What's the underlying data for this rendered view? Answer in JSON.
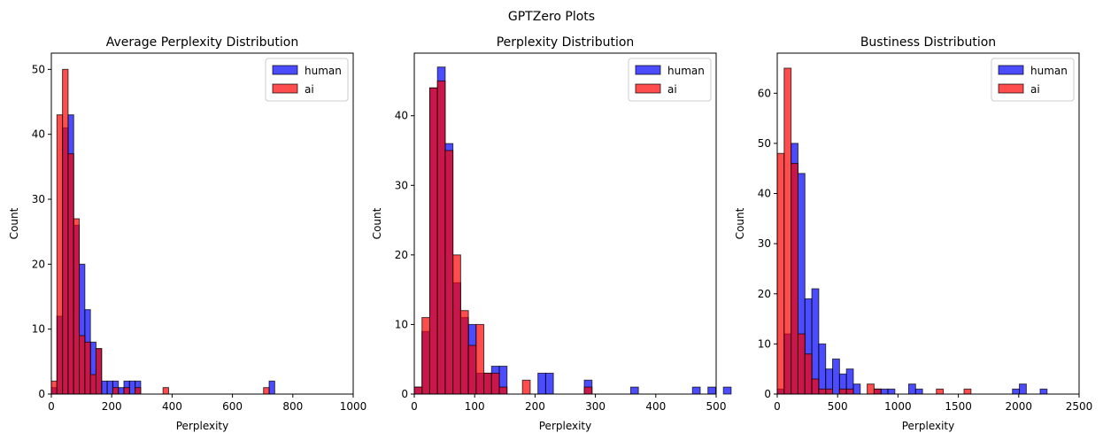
{
  "suptitle": "GPTZero Plots",
  "colors": {
    "human": "#0000ff",
    "ai": "#ff0000",
    "edge": "#000000"
  },
  "chart_data": [
    {
      "type": "bar",
      "title": "Average Perplexity Distribution",
      "xlabel": "Perplexity",
      "ylabel": "Count",
      "xlim": [
        0,
        1000
      ],
      "ylim": [
        0,
        52.5
      ],
      "xticks": [
        0,
        200,
        400,
        600,
        800,
        1000
      ],
      "yticks": [
        0,
        10,
        20,
        30,
        40,
        50
      ],
      "legend": {
        "position": "top-right",
        "entries": [
          "human",
          "ai"
        ]
      },
      "grid": false,
      "bin_width": 18.5,
      "bin_start": 0,
      "series": [
        {
          "name": "human",
          "values": [
            1,
            12,
            41,
            43,
            26,
            20,
            13,
            8,
            7,
            2,
            2,
            2,
            1,
            2,
            2,
            2,
            0,
            0,
            0,
            0,
            0,
            0,
            0,
            0,
            0,
            0,
            0,
            0,
            0,
            0,
            0,
            0,
            0,
            0,
            0,
            0,
            0,
            0,
            0,
            2
          ]
        },
        {
          "name": "ai",
          "values": [
            2,
            43,
            50,
            37,
            27,
            9,
            8,
            3,
            7,
            0,
            0,
            1,
            0,
            1,
            0,
            1,
            0,
            0,
            0,
            0,
            1,
            0,
            0,
            0,
            0,
            0,
            0,
            0,
            0,
            0,
            0,
            0,
            0,
            0,
            0,
            0,
            0,
            0,
            1,
            0
          ]
        }
      ]
    },
    {
      "type": "bar",
      "title": "Perplexity Distribution",
      "xlabel": "Perplexity",
      "ylabel": "Count",
      "xlim": [
        0,
        500
      ],
      "ylim": [
        0,
        49
      ],
      "xticks": [
        0,
        100,
        200,
        300,
        400,
        500
      ],
      "yticks": [
        0,
        10,
        20,
        30,
        40
      ],
      "legend": {
        "position": "top-right",
        "entries": [
          "human",
          "ai"
        ]
      },
      "grid": false,
      "bin_width": 12.8,
      "bin_start": 0,
      "series": [
        {
          "name": "human",
          "values": [
            1,
            9,
            44,
            47,
            36,
            16,
            11,
            10,
            3,
            3,
            4,
            4,
            0,
            0,
            0,
            0,
            3,
            3,
            0,
            0,
            0,
            0,
            2,
            0,
            0,
            0,
            0,
            0,
            1,
            0,
            0,
            0,
            0,
            0,
            0,
            0,
            1,
            0,
            1,
            0,
            1
          ]
        },
        {
          "name": "ai",
          "values": [
            1,
            11,
            44,
            45,
            35,
            20,
            12,
            7,
            10,
            3,
            3,
            1,
            0,
            0,
            2,
            0,
            0,
            0,
            0,
            0,
            0,
            0,
            1,
            0,
            0,
            0,
            0,
            0,
            0,
            0,
            0,
            0,
            0,
            0,
            0,
            0,
            0,
            0,
            0,
            0,
            0
          ]
        }
      ]
    },
    {
      "type": "bar",
      "title": "Bustiness Distribution",
      "xlabel": "Perplexity",
      "ylabel": "Count",
      "xlim": [
        0,
        2500
      ],
      "ylim": [
        0,
        68
      ],
      "xticks": [
        0,
        500,
        1000,
        1500,
        2000,
        2500
      ],
      "yticks": [
        0,
        10,
        20,
        30,
        40,
        50,
        60
      ],
      "legend": {
        "position": "top-right",
        "entries": [
          "human",
          "ai"
        ]
      },
      "grid": false,
      "bin_width": 57.3,
      "bin_start": 0,
      "series": [
        {
          "name": "human",
          "values": [
            1,
            12,
            50,
            44,
            19,
            21,
            10,
            5,
            7,
            4,
            5,
            2,
            0,
            0,
            1,
            1,
            1,
            0,
            0,
            2,
            1,
            0,
            0,
            0,
            0,
            0,
            0,
            0,
            0,
            0,
            0,
            0,
            0,
            0,
            1,
            2,
            0,
            0,
            1,
            0
          ]
        },
        {
          "name": "ai",
          "values": [
            48,
            65,
            46,
            12,
            8,
            3,
            1,
            1,
            0,
            1,
            1,
            0,
            0,
            2,
            1,
            0,
            0,
            0,
            0,
            0,
            0,
            0,
            0,
            1,
            0,
            0,
            0,
            1,
            0,
            0,
            0,
            0,
            0,
            0,
            0,
            0,
            0,
            0,
            0,
            0
          ]
        }
      ]
    }
  ]
}
